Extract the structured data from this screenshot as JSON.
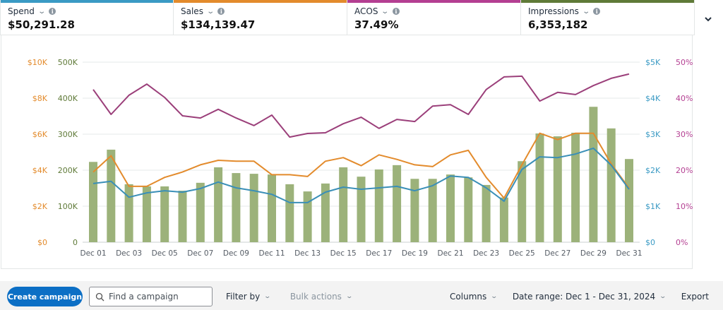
{
  "metrics": [
    {
      "label": "Spend",
      "value": "$50,291.28",
      "color": "#3a9ac4"
    },
    {
      "label": "Sales",
      "value": "$134,139.47",
      "color": "#e38b2c"
    },
    {
      "label": "ACOS",
      "value": "37.49%",
      "color": "#b43f92"
    },
    {
      "label": "Impressions",
      "value": "6,353,182",
      "color": "#5f7a38"
    }
  ],
  "toolbar": {
    "create_label": "Create campaign",
    "search_placeholder": "Find a campaign",
    "filter_label": "Filter by",
    "bulk_label": "Bulk actions",
    "columns_label": "Columns",
    "date_range_label": "Date range: Dec 1 - Dec 31, 2024",
    "export_label": "Export"
  },
  "chart_data": {
    "type": "bar+line",
    "title": "",
    "grid": true,
    "categories": [
      "Dec 01",
      "Dec 02",
      "Dec 03",
      "Dec 04",
      "Dec 05",
      "Dec 06",
      "Dec 07",
      "Dec 08",
      "Dec 09",
      "Dec 10",
      "Dec 11",
      "Dec 12",
      "Dec 13",
      "Dec 14",
      "Dec 15",
      "Dec 16",
      "Dec 17",
      "Dec 18",
      "Dec 19",
      "Dec 20",
      "Dec 21",
      "Dec 22",
      "Dec 23",
      "Dec 24",
      "Dec 25",
      "Dec 26",
      "Dec 27",
      "Dec 28",
      "Dec 29",
      "Dec 30",
      "Dec 31"
    ],
    "x_tick_labels": [
      "Dec 01",
      "Dec 03",
      "Dec 05",
      "Dec 07",
      "Dec 09",
      "Dec 11",
      "Dec 13",
      "Dec 15",
      "Dec 17",
      "Dec 19",
      "Dec 21",
      "Dec 23",
      "Dec 25",
      "Dec 27",
      "Dec 29",
      "Dec 31"
    ],
    "axes": [
      {
        "id": "sales",
        "position": "left-outer",
        "range": [
          0,
          10000
        ],
        "ticks": [
          "$0",
          "$2K",
          "$4K",
          "$6K",
          "$8K",
          "$10K"
        ],
        "color": "#e38b2c"
      },
      {
        "id": "impressions",
        "position": "left-inner",
        "range": [
          0,
          500000
        ],
        "ticks": [
          "0",
          "100K",
          "200K",
          "300K",
          "400K",
          "500K"
        ],
        "color": "#5f7a38"
      },
      {
        "id": "spend",
        "position": "right-inner",
        "range": [
          0,
          5000
        ],
        "ticks": [
          "$0",
          "$1K",
          "$2K",
          "$3K",
          "$4K",
          "$5K"
        ],
        "color": "#3a9ac4"
      },
      {
        "id": "acos",
        "position": "right-outer",
        "range": [
          0,
          50
        ],
        "ticks": [
          "0%",
          "10%",
          "20%",
          "30%",
          "40%",
          "50%"
        ],
        "color": "#b43f92"
      }
    ],
    "series": [
      {
        "name": "Impressions",
        "kind": "bar",
        "axis": "impressions",
        "color": "#9cb27a",
        "values": [
          223000,
          257000,
          161000,
          155000,
          155000,
          143000,
          165000,
          208000,
          192000,
          190000,
          188000,
          161000,
          141000,
          163000,
          208000,
          182000,
          202000,
          214000,
          176000,
          176000,
          188000,
          180000,
          159000,
          124000,
          225000,
          302000,
          294000,
          304000,
          376000,
          316000,
          231000
        ]
      },
      {
        "name": "Sales",
        "kind": "line",
        "axis": "sales",
        "color": "#e38b2c",
        "values": [
          3900,
          4800,
          3100,
          3100,
          3600,
          3900,
          4300,
          4550,
          4500,
          4500,
          3750,
          3750,
          3650,
          4500,
          4700,
          4250,
          4850,
          4600,
          4300,
          4200,
          4850,
          5100,
          3600,
          2450,
          4300,
          6050,
          5700,
          6050,
          6050,
          4350,
          3000
        ]
      },
      {
        "name": "Spend",
        "kind": "line",
        "axis": "spend",
        "color": "#3a8fb7",
        "values": [
          1630,
          1690,
          1250,
          1370,
          1430,
          1390,
          1490,
          1670,
          1510,
          1430,
          1330,
          1100,
          1100,
          1390,
          1530,
          1470,
          1510,
          1550,
          1430,
          1570,
          1840,
          1800,
          1510,
          1140,
          2020,
          2370,
          2350,
          2450,
          2610,
          2140,
          1470
        ]
      },
      {
        "name": "ACOS",
        "kind": "line",
        "axis": "acos",
        "color": "#9b3f7a",
        "values": [
          42.4,
          35.5,
          40.8,
          43.9,
          40.2,
          35.1,
          34.5,
          36.9,
          34.5,
          32.4,
          35.3,
          29.2,
          30.2,
          30.4,
          32.9,
          34.7,
          31.6,
          34.1,
          33.5,
          37.8,
          38.2,
          35.5,
          42.4,
          45.9,
          46.1,
          39.2,
          41.6,
          41.0,
          43.5,
          45.5,
          46.7
        ]
      }
    ]
  }
}
